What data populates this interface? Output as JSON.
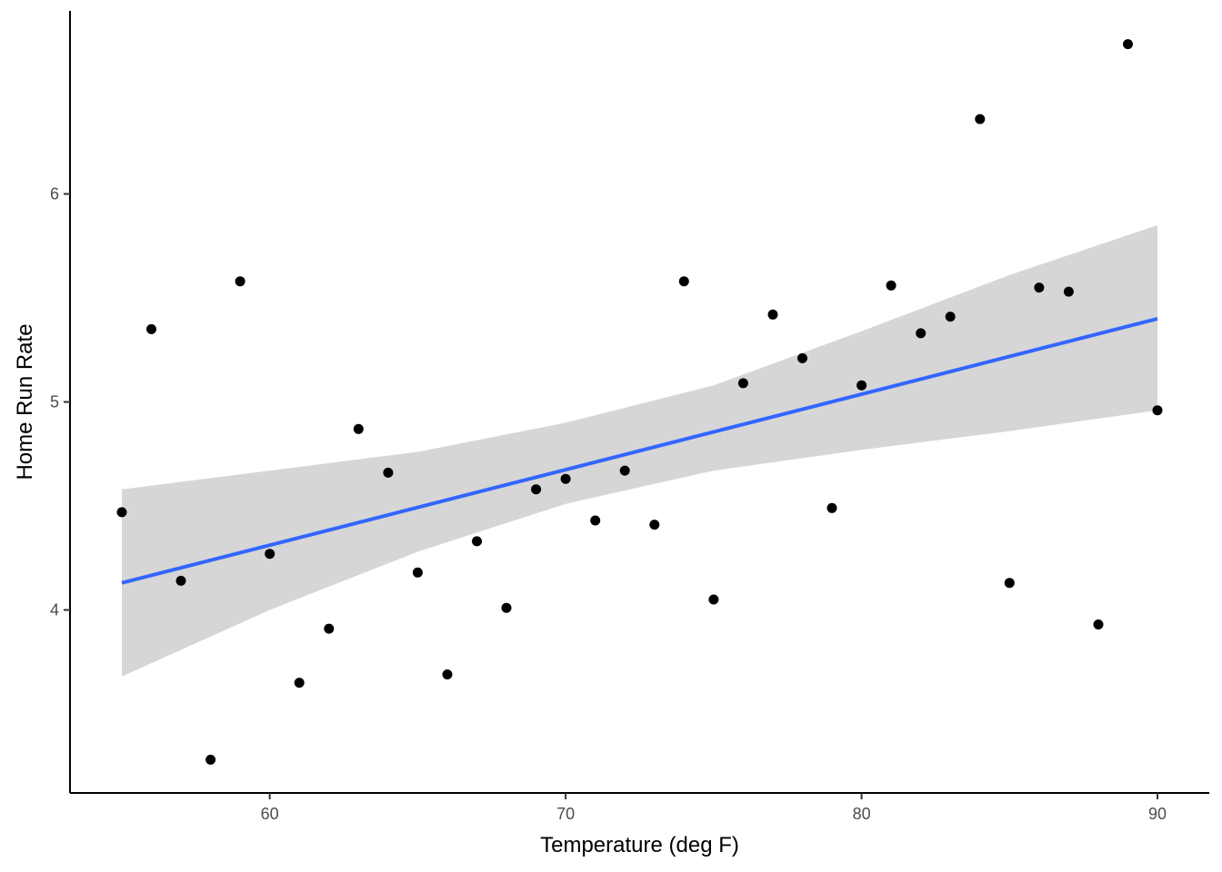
{
  "chart_data": {
    "type": "scatter",
    "title": "",
    "xlabel": "Temperature (deg F)",
    "ylabel": "Home Run Rate",
    "xlim": [
      53.25,
      91.75
    ],
    "ylim": [
      3.12,
      6.88
    ],
    "x_ticks": [
      60,
      70,
      80,
      90
    ],
    "x_tick_labels": [
      "60",
      "70",
      "80",
      "90"
    ],
    "y_ticks": [
      4,
      5,
      6
    ],
    "y_tick_labels": [
      "4",
      "5",
      "6"
    ],
    "grid": false,
    "legend": "none",
    "points": {
      "x": [
        55,
        56,
        57,
        58,
        59,
        60,
        61,
        62,
        63,
        64,
        65,
        66,
        67,
        68,
        69,
        70,
        71,
        72,
        73,
        74,
        75,
        76,
        77,
        78,
        79,
        80,
        81,
        82,
        83,
        84,
        85,
        86,
        87,
        88,
        89,
        90
      ],
      "y": [
        4.47,
        5.35,
        4.14,
        3.28,
        5.58,
        4.27,
        3.65,
        3.91,
        4.87,
        4.66,
        4.18,
        3.69,
        4.33,
        4.01,
        4.58,
        4.63,
        4.43,
        4.67,
        4.41,
        5.58,
        4.05,
        5.09,
        5.42,
        5.21,
        4.49,
        5.08,
        5.56,
        5.33,
        5.41,
        6.36,
        4.13,
        5.55,
        5.53,
        3.93,
        6.72,
        4.96
      ]
    },
    "trend_line": {
      "x": [
        55,
        90
      ],
      "y": [
        4.13,
        5.4
      ],
      "color": "#3366ff"
    },
    "confidence_band": {
      "x": [
        55,
        60,
        65,
        70,
        75,
        80,
        85,
        90
      ],
      "lower": [
        3.68,
        4.0,
        4.28,
        4.51,
        4.67,
        4.77,
        4.86,
        4.96
      ],
      "upper": [
        4.58,
        4.67,
        4.76,
        4.9,
        5.08,
        5.34,
        5.61,
        5.85
      ],
      "color": "#d4d4d4"
    },
    "point_color": "#000000"
  }
}
